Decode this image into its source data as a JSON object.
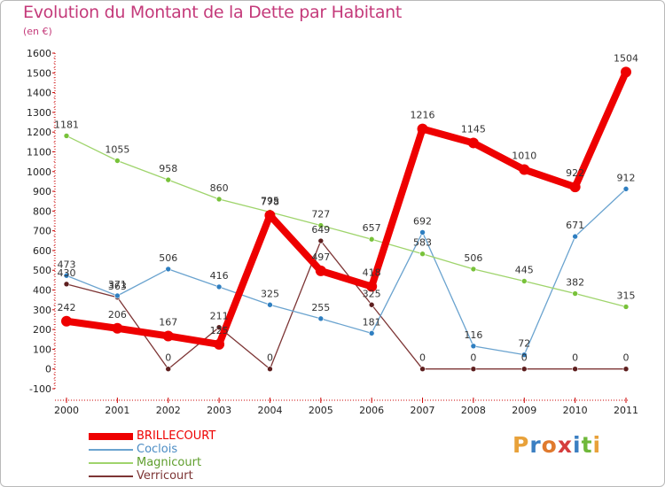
{
  "title": "Evolution du Montant de la Dette par Habitant",
  "unit": "(en €)",
  "brand": {
    "text": [
      "P",
      "r",
      "o",
      "x",
      "i",
      "t",
      "i"
    ],
    "colors": [
      "#e8a13a",
      "#3b7fc2",
      "#e07a2e",
      "#d53d3d",
      "#3b7fc2",
      "#6fb83a",
      "#e8a13a"
    ]
  },
  "chart_data": {
    "type": "line",
    "categories": [
      "2000",
      "2001",
      "2002",
      "2003",
      "2004",
      "2005",
      "2006",
      "2007",
      "2008",
      "2009",
      "2010",
      "2011"
    ],
    "ylim": [
      -100,
      1600
    ],
    "ticks": [
      "-100",
      "0",
      "100",
      "200",
      "300",
      "400",
      "500",
      "600",
      "700",
      "800",
      "900",
      "1000",
      "1100",
      "1200",
      "1300",
      "1400",
      "1500",
      "1600"
    ],
    "grid": false,
    "legend_position": "bottom-left",
    "series": [
      {
        "name": "BRILLECOURT",
        "color": "#ee0000",
        "width": 8,
        "marker": 6,
        "values": [
          242,
          206,
          167,
          125,
          778,
          497,
          418,
          1216,
          1145,
          1010,
          922,
          1504
        ],
        "labels": [
          "242",
          "206",
          "167",
          "125",
          "778",
          "497",
          "418",
          "1216",
          "1145",
          "1010",
          "922",
          "1504"
        ]
      },
      {
        "name": "Coclois",
        "color": "#6aa3cf",
        "width": 1.3,
        "marker": 3,
        "markerColor": "#2f7fc1",
        "values": [
          473,
          371,
          506,
          416,
          325,
          255,
          181,
          692,
          116,
          72,
          671,
          912
        ],
        "labels": [
          "473",
          "371",
          "506",
          "416",
          "325",
          "255",
          "181",
          "692",
          "116",
          "72",
          "671",
          "912"
        ]
      },
      {
        "name": "Magnicourt",
        "color": "#9fd46c",
        "width": 1.3,
        "marker": 3,
        "markerColor": "#78c23a",
        "values": [
          1181,
          1055,
          958,
          860,
          795,
          727,
          657,
          583,
          506,
          445,
          382,
          315
        ],
        "labels": [
          "1181",
          "1055",
          "958",
          "860",
          "795",
          "727",
          "657",
          "583",
          "506",
          "445",
          "382",
          "315"
        ]
      },
      {
        "name": "Verricourt",
        "color": "#7d3535",
        "width": 1.3,
        "marker": 3,
        "markerColor": "#5e1f1f",
        "values": [
          430,
          363,
          0,
          211,
          0,
          649,
          325,
          0,
          0,
          0,
          0,
          0
        ],
        "labels": [
          "430",
          "363",
          "0",
          "211",
          "0",
          "649",
          "325",
          "0",
          "0",
          "0",
          "0",
          "0"
        ]
      }
    ]
  }
}
